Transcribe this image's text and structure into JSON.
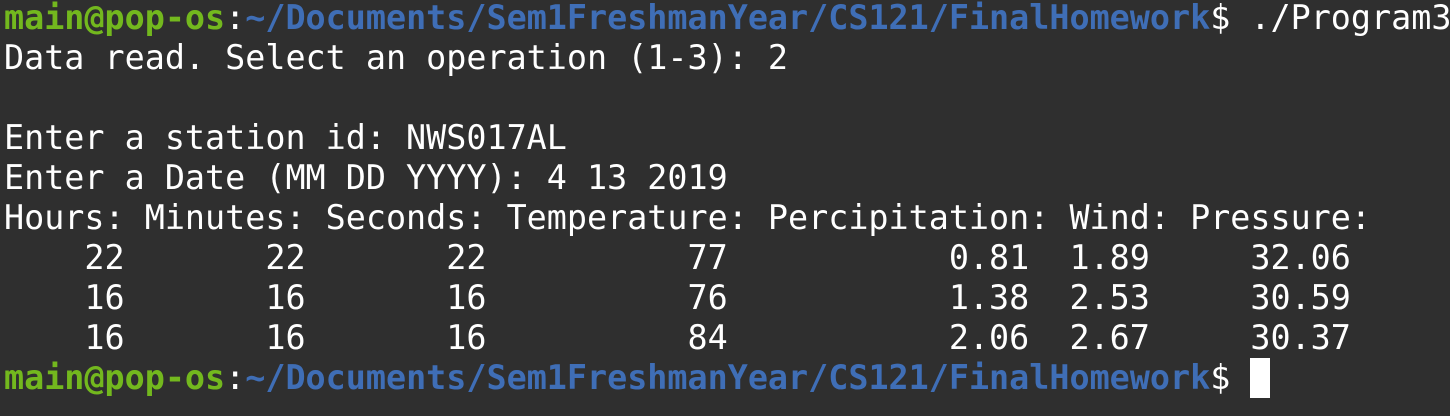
{
  "prompt": {
    "user_host": "main@pop-os",
    "colon": ":",
    "path": "~/Documents/Sem1FreshmanYear/CS121/FinalHomework",
    "symbol": "$"
  },
  "command": " ./Program3",
  "lines": {
    "data_read": "Data read. Select an operation (1-3): 2",
    "blank": "",
    "station": "Enter a station id: NWS017AL",
    "date": "Enter a Date (MM DD YYYY): 4 13 2019",
    "header": "Hours: Minutes: Seconds: Temperature: Percipitation: Wind: Pressure:"
  },
  "table_rows": [
    "    22       22       22          77           0.81  1.89     32.06",
    "    16       16       16          76           1.38  2.53     30.59",
    "    16       16       16          84           2.06  2.67     30.37"
  ],
  "cursor_color": "#ffffff"
}
